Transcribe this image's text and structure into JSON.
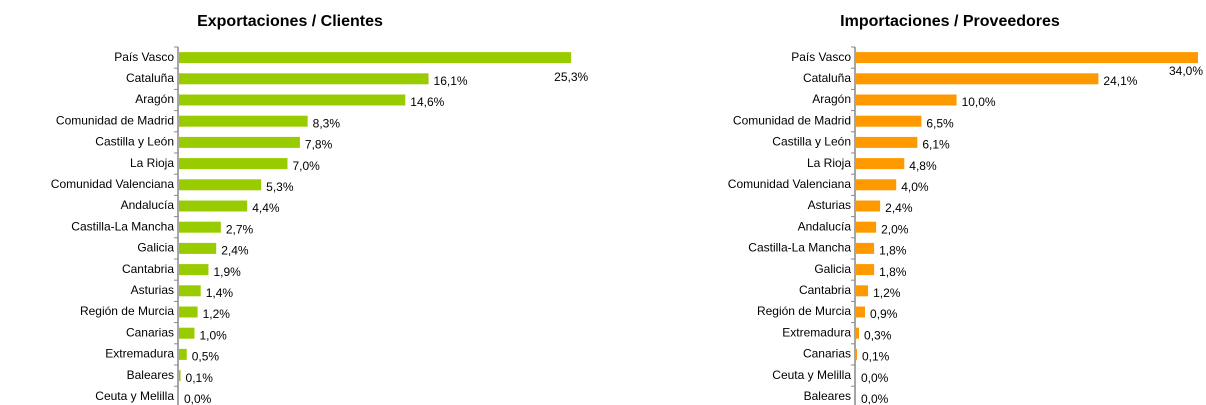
{
  "chart_data": [
    {
      "type": "barh",
      "title": "Exportaciones / Clientes",
      "color": "#99cc00",
      "categories": [
        "País Vasco",
        "Cataluña",
        "Aragón",
        "Comunidad de Madrid",
        "Castilla y León",
        "La Rioja",
        "Comunidad Valenciana",
        "Andalucía",
        "Castilla-La Mancha",
        "Galicia",
        "Cantabria",
        "Asturias",
        "Región de Murcia",
        "Canarias",
        "Extremadura",
        "Baleares",
        "Ceuta y Melilla"
      ],
      "values": [
        25.3,
        16.1,
        14.6,
        8.3,
        7.8,
        7.0,
        5.3,
        4.4,
        2.7,
        2.4,
        1.9,
        1.4,
        1.2,
        1.0,
        0.5,
        0.1,
        0.0
      ],
      "value_labels": [
        "25,3%",
        "16,1%",
        "14,6%",
        "8,3%",
        "7,8%",
        "7,0%",
        "5,3%",
        "4,4%",
        "2,7%",
        "2,4%",
        "1,9%",
        "1,4%",
        "1,2%",
        "1,0%",
        "0,5%",
        "0,1%",
        "0,0%"
      ],
      "xlim": [
        0,
        30
      ]
    },
    {
      "type": "barh",
      "title": "Importaciones / Proveedores",
      "color": "#ff9900",
      "categories": [
        "País Vasco",
        "Cataluña",
        "Aragón",
        "Comunidad de Madrid",
        "Castilla y León",
        "La Rioja",
        "Comunidad Valenciana",
        "Asturias",
        "Andalucía",
        "Castilla-La Mancha",
        "Galicia",
        "Cantabria",
        "Región de Murcia",
        "Extremadura",
        "Canarias",
        "Ceuta y Melilla",
        "Baleares"
      ],
      "values": [
        34.0,
        24.1,
        10.0,
        6.5,
        6.1,
        4.8,
        4.0,
        2.4,
        2.0,
        1.8,
        1.8,
        1.2,
        0.9,
        0.3,
        0.1,
        0.0,
        0.0
      ],
      "value_labels": [
        "34,0%",
        "24,1%",
        "10,0%",
        "6,5%",
        "6,1%",
        "4,8%",
        "4,0%",
        "2,4%",
        "2,0%",
        "1,8%",
        "1,8%",
        "1,2%",
        "0,9%",
        "0,3%",
        "0,1%",
        "0,0%",
        "0,0%"
      ],
      "xlim": [
        0,
        34
      ]
    }
  ]
}
